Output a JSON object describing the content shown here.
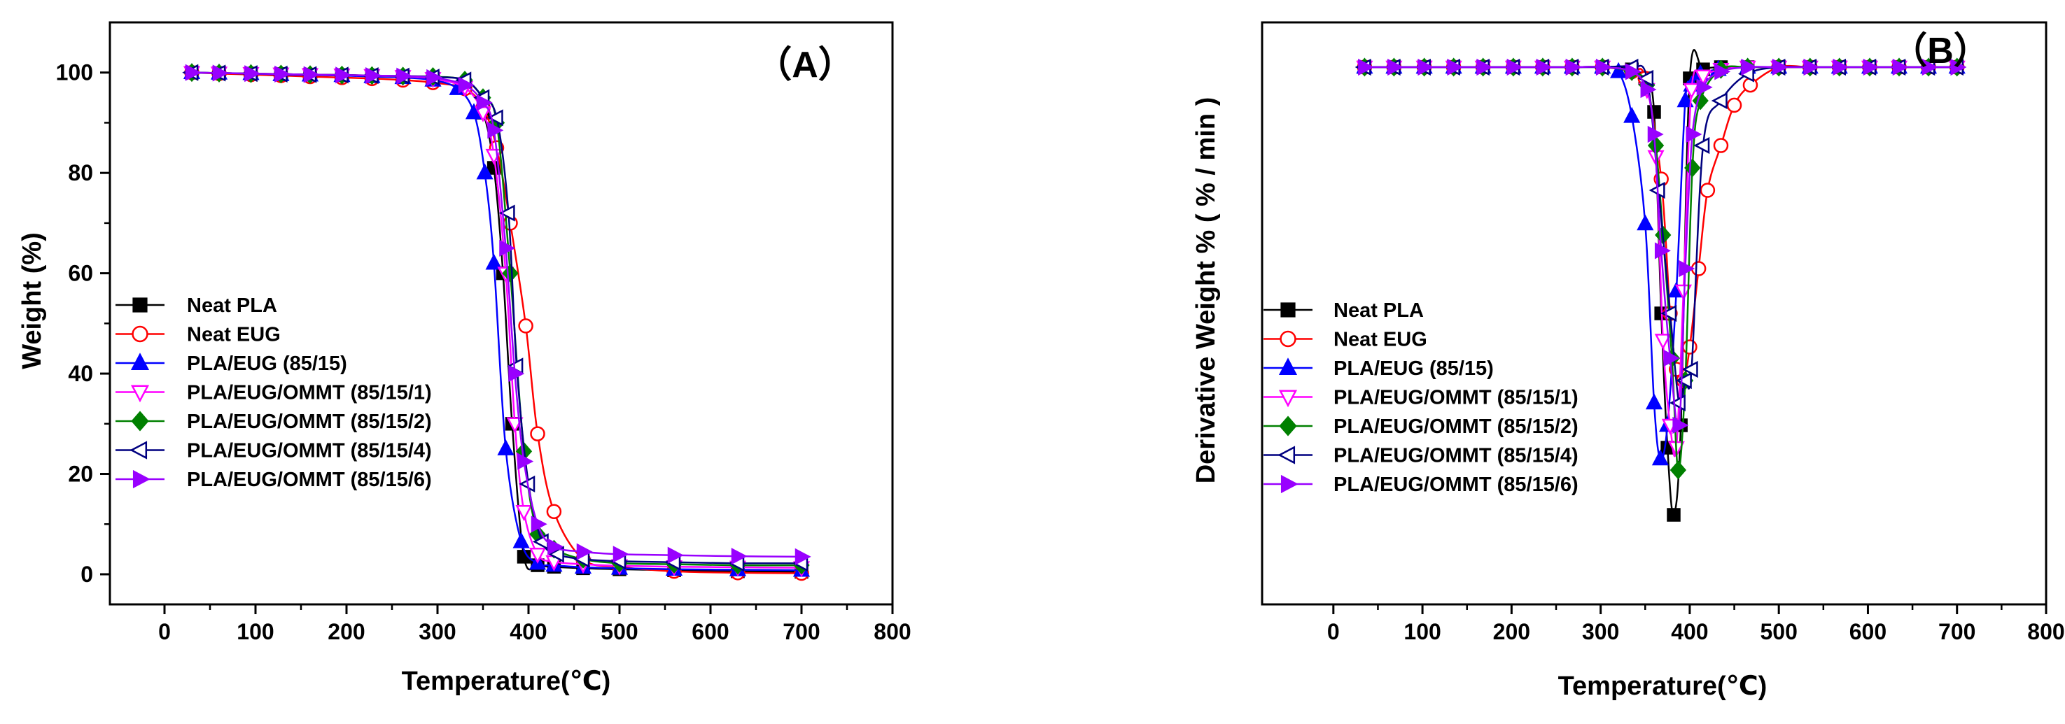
{
  "chart_data": [
    {
      "type": "line",
      "panel_label": "（A）",
      "title": "",
      "xlabel": "Temperature(℃)",
      "ylabel": "Weight (%)",
      "xlim": [
        -60,
        800
      ],
      "ylim": [
        -6,
        110
      ],
      "x_ticks": [
        0,
        100,
        200,
        300,
        400,
        500,
        600,
        700,
        800
      ],
      "y_ticks": [
        0,
        20,
        40,
        60,
        80,
        100
      ],
      "legend_position": "left",
      "series": [
        {
          "name": "Neat PLA",
          "color": "#000000",
          "marker": "square",
          "filled": true,
          "x": [
            30,
            60,
            95,
            128,
            160,
            195,
            228,
            262,
            295,
            330,
            350,
            362,
            372,
            382,
            395,
            410,
            428,
            460,
            500,
            560,
            630,
            700
          ],
          "y": [
            100,
            99.9,
            99.8,
            99.7,
            99.6,
            99.5,
            99.4,
            99.2,
            98.8,
            97,
            92,
            81,
            60,
            30,
            3.5,
            1.8,
            1.5,
            1.2,
            1,
            0.8,
            0.6,
            0.5
          ]
        },
        {
          "name": "Neat EUG",
          "color": "#ff0000",
          "marker": "circle",
          "filled": false,
          "x": [
            30,
            60,
            95,
            128,
            160,
            195,
            228,
            262,
            295,
            330,
            350,
            365,
            380,
            397,
            410,
            428,
            460,
            500,
            560,
            630,
            700
          ],
          "y": [
            100,
            99.8,
            99.6,
            99.4,
            99.2,
            99,
            98.8,
            98.5,
            98,
            96.8,
            93,
            85,
            70,
            49.5,
            28,
            12.5,
            3,
            1.5,
            0.6,
            0.3,
            0.2
          ]
        },
        {
          "name": "PLA/EUG (85/15)",
          "color": "#0000ff",
          "marker": "triangle-up",
          "filled": true,
          "x": [
            30,
            60,
            95,
            128,
            160,
            195,
            228,
            262,
            295,
            322,
            340,
            352,
            362,
            375,
            392,
            410,
            428,
            460,
            500,
            560,
            630,
            700
          ],
          "y": [
            100,
            99.9,
            99.8,
            99.6,
            99.5,
            99.4,
            99.2,
            99,
            98.5,
            96.8,
            92,
            80,
            62,
            25,
            6.5,
            2.2,
            1.8,
            1.4,
            1.2,
            1,
            0.9,
            0.8
          ]
        },
        {
          "name": "PLA/EUG/OMMT (85/15/1)",
          "color": "#ff00ff",
          "marker": "triangle-down",
          "filled": false,
          "x": [
            30,
            60,
            95,
            128,
            160,
            195,
            228,
            262,
            295,
            330,
            350,
            362,
            375,
            385,
            395,
            410,
            428,
            460,
            500,
            560,
            630,
            700
          ],
          "y": [
            100,
            99.9,
            99.8,
            99.7,
            99.6,
            99.5,
            99.4,
            99.2,
            98.8,
            97,
            92,
            83.5,
            60,
            30,
            12.5,
            4,
            2.5,
            2,
            1.7,
            1.5,
            1.4,
            1.3
          ]
        },
        {
          "name": "PLA/EUG/OMMT (85/15/2)",
          "color": "#008000",
          "marker": "diamond",
          "filled": true,
          "x": [
            30,
            60,
            95,
            128,
            160,
            195,
            228,
            262,
            295,
            330,
            350,
            365,
            380,
            395,
            410,
            428,
            460,
            500,
            560,
            630,
            700
          ],
          "y": [
            100,
            99.9,
            99.8,
            99.7,
            99.6,
            99.5,
            99.4,
            99.3,
            99.2,
            98.5,
            95,
            90,
            60,
            24.5,
            8,
            5,
            3,
            2.2,
            2,
            1.8,
            1.8
          ]
        },
        {
          "name": "PLA/EUG/OMMT (85/15/4)",
          "color": "#000080",
          "marker": "triangle-left",
          "filled": false,
          "x": [
            30,
            60,
            95,
            128,
            160,
            195,
            228,
            262,
            295,
            330,
            350,
            365,
            378,
            387,
            400,
            415,
            432,
            460,
            500,
            560,
            630,
            700
          ],
          "y": [
            100,
            99.9,
            99.8,
            99.7,
            99.6,
            99.5,
            99.4,
            99.3,
            99.1,
            98.5,
            95,
            91,
            72,
            41.5,
            18,
            6.5,
            4,
            3,
            2.6,
            2.4,
            2.2,
            2.2
          ]
        },
        {
          "name": "PLA/EUG/OMMT (85/15/6)",
          "color": "#9900ff",
          "marker": "triangle-right",
          "filled": true,
          "x": [
            30,
            60,
            95,
            128,
            160,
            195,
            228,
            262,
            295,
            330,
            350,
            362,
            375,
            385,
            395,
            410,
            428,
            460,
            500,
            560,
            630,
            700
          ],
          "y": [
            100,
            99.9,
            99.8,
            99.7,
            99.6,
            99.5,
            99.4,
            99.3,
            99,
            97.5,
            94,
            88.5,
            65,
            40,
            22.5,
            10,
            5.5,
            4.5,
            4,
            3.8,
            3.6,
            3.5
          ]
        }
      ]
    },
    {
      "type": "line",
      "panel_label": "（B）",
      "title": "",
      "xlabel": "Temperature(℃)",
      "ylabel": "Derivative Weight % ( % / min )",
      "xlim": [
        -80,
        800
      ],
      "ylim": [
        -14,
        12
      ],
      "x_ticks": [
        0,
        100,
        200,
        300,
        400,
        500,
        600,
        700,
        800
      ],
      "y_ticks": [],
      "legend_position": "left",
      "series": [
        {
          "name": "Neat PLA",
          "color": "#000000",
          "marker": "square",
          "filled": true,
          "x": [
            35,
            68,
            102,
            135,
            168,
            202,
            235,
            268,
            302,
            335,
            350,
            360,
            368,
            375,
            382,
            390,
            400,
            415,
            435,
            465,
            500,
            535,
            568,
            602,
            635,
            668,
            700
          ],
          "y": [
            10,
            10,
            10,
            10,
            10,
            10,
            10,
            10,
            10,
            9.9,
            9.5,
            8,
            -1,
            -7,
            -10,
            -6,
            9.5,
            9.9,
            10,
            10,
            10,
            10,
            10,
            10,
            10,
            10,
            10
          ]
        },
        {
          "name": "Neat EUG",
          "color": "#ff0000",
          "marker": "circle",
          "filled": false,
          "x": [
            35,
            68,
            102,
            135,
            168,
            202,
            235,
            268,
            302,
            335,
            350,
            368,
            378,
            385,
            393,
            400,
            410,
            420,
            435,
            450,
            468,
            500,
            535,
            568,
            602,
            635,
            668,
            700
          ],
          "y": [
            10,
            10,
            10,
            10,
            10,
            10,
            10,
            10,
            10,
            9.8,
            9.5,
            5,
            -1,
            -3.5,
            -4,
            -2.5,
            1,
            4.5,
            6.5,
            8.3,
            9.2,
            10,
            10,
            10,
            10,
            10,
            10,
            10
          ]
        },
        {
          "name": "PLA/EUG (85/15)",
          "color": "#0000ff",
          "marker": "triangle-up",
          "filled": true,
          "x": [
            35,
            68,
            102,
            135,
            168,
            202,
            235,
            268,
            302,
            320,
            335,
            350,
            360,
            367,
            375,
            385,
            395,
            402,
            412,
            432,
            465,
            500,
            535,
            568,
            602,
            635,
            668,
            700
          ],
          "y": [
            10,
            10,
            10,
            10,
            10,
            10,
            10,
            10,
            10,
            9.8,
            7.8,
            3,
            -5,
            -7.5,
            -6,
            0,
            8.5,
            9.2,
            9.7,
            9.9,
            10,
            10,
            10,
            10,
            10,
            10,
            10,
            10
          ]
        },
        {
          "name": "PLA/EUG/OMMT (85/15/1)",
          "color": "#ff00ff",
          "marker": "triangle-down",
          "filled": false,
          "x": [
            35,
            68,
            102,
            135,
            168,
            202,
            235,
            268,
            302,
            335,
            352,
            362,
            370,
            378,
            385,
            393,
            402,
            415,
            435,
            465,
            500,
            535,
            568,
            602,
            635,
            668,
            700
          ],
          "y": [
            10,
            10,
            10,
            10,
            10,
            10,
            10,
            10,
            10,
            9.8,
            9,
            6,
            -2.2,
            -6,
            -7,
            0,
            9,
            9.6,
            9.9,
            10,
            10,
            10,
            10,
            10,
            10,
            10,
            10
          ]
        },
        {
          "name": "PLA/EUG/OMMT (85/15/2)",
          "color": "#008000",
          "marker": "diamond",
          "filled": true,
          "x": [
            35,
            68,
            102,
            135,
            168,
            202,
            235,
            268,
            302,
            335,
            352,
            362,
            370,
            380,
            387,
            395,
            403,
            412,
            435,
            465,
            500,
            535,
            568,
            602,
            635,
            668,
            700
          ],
          "y": [
            10,
            10,
            10,
            10,
            10,
            10,
            10,
            10,
            10,
            9.8,
            9.2,
            6.5,
            2.5,
            -3,
            -8,
            -4,
            5.5,
            8.5,
            9.9,
            10,
            10,
            10,
            10,
            10,
            10,
            10,
            10
          ]
        },
        {
          "name": "PLA/EUG/OMMT (85/15/4)",
          "color": "#000080",
          "marker": "triangle-left",
          "filled": false,
          "x": [
            35,
            68,
            102,
            135,
            168,
            202,
            235,
            268,
            302,
            335,
            352,
            365,
            378,
            388,
            395,
            402,
            415,
            435,
            465,
            500,
            535,
            568,
            602,
            635,
            668,
            700
          ],
          "y": [
            10,
            10,
            10,
            10,
            10,
            10,
            10,
            10,
            10,
            10,
            9.5,
            4.5,
            -1,
            -5,
            -4,
            -3.5,
            6.5,
            8.5,
            9.7,
            10,
            10,
            10,
            10,
            10,
            10,
            10
          ]
        },
        {
          "name": "PLA/EUG/OMMT (85/15/6)",
          "color": "#9900ff",
          "marker": "triangle-right",
          "filled": true,
          "x": [
            35,
            68,
            102,
            135,
            168,
            202,
            235,
            268,
            302,
            335,
            352,
            360,
            368,
            378,
            388,
            395,
            403,
            415,
            435,
            465,
            500,
            535,
            568,
            602,
            635,
            668,
            700
          ],
          "y": [
            10,
            10,
            10,
            10,
            10,
            10,
            10,
            10,
            10,
            9.8,
            9,
            7,
            1.8,
            -3,
            -6,
            1,
            7,
            9.1,
            9.8,
            10,
            10,
            10,
            10,
            10,
            10,
            10,
            10
          ]
        }
      ]
    }
  ]
}
